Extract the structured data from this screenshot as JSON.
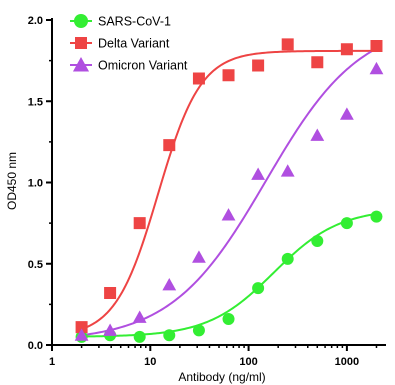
{
  "chart_data": {
    "type": "scatter",
    "xlabel": "Antibody (ng/ml)",
    "ylabel": "OD450 nm",
    "xscale": "log",
    "xlim": [
      1,
      2500
    ],
    "ylim": [
      0,
      2.0
    ],
    "x_ticks": [
      {
        "value": 1,
        "label": "1"
      },
      {
        "value": 10,
        "label": "10"
      },
      {
        "value": 100,
        "label": "100"
      },
      {
        "value": 1000,
        "label": "1000"
      }
    ],
    "y_ticks": [
      {
        "value": 0,
        "label": "0.0"
      },
      {
        "value": 0.5,
        "label": "0.5"
      },
      {
        "value": 1.0,
        "label": "1.0"
      },
      {
        "value": 1.5,
        "label": "1.5"
      },
      {
        "value": 2.0,
        "label": "2.0"
      }
    ],
    "legend_position": "top-left",
    "grid": false,
    "series": [
      {
        "name": "SARS-CoV-1",
        "color": "#33ee33",
        "marker": "circle",
        "x": [
          2,
          3.9,
          7.8,
          15.6,
          31.25,
          62.5,
          125,
          250,
          500,
          1000,
          2000
        ],
        "y": [
          0.05,
          0.06,
          0.05,
          0.06,
          0.09,
          0.16,
          0.35,
          0.53,
          0.64,
          0.75,
          0.79
        ],
        "fit": {
          "bottom": 0.05,
          "top": 0.84,
          "ec50": 180,
          "hill": 1.3
        }
      },
      {
        "name": "Delta Variant",
        "color": "#ee4444",
        "marker": "square",
        "x": [
          2,
          3.9,
          7.8,
          15.6,
          31.25,
          62.5,
          125,
          250,
          500,
          1000,
          2000
        ],
        "y": [
          0.11,
          0.32,
          0.75,
          1.23,
          1.64,
          1.66,
          1.72,
          1.85,
          1.74,
          1.82,
          1.84
        ],
        "fit": {
          "bottom": 0.05,
          "top": 1.81,
          "ec50": 12,
          "hill": 2.0
        }
      },
      {
        "name": "Omicron Variant",
        "color": "#b04fe0",
        "marker": "triangle",
        "x": [
          2,
          3.9,
          7.8,
          15.6,
          31.25,
          62.5,
          125,
          250,
          500,
          1000,
          2000
        ],
        "y": [
          0.06,
          0.09,
          0.17,
          0.37,
          0.54,
          0.8,
          1.05,
          1.07,
          1.29,
          1.42,
          1.7
        ],
        "fit": {
          "bottom": 0.02,
          "top": 2.0,
          "ec50": 150,
          "hill": 0.9
        }
      }
    ]
  }
}
